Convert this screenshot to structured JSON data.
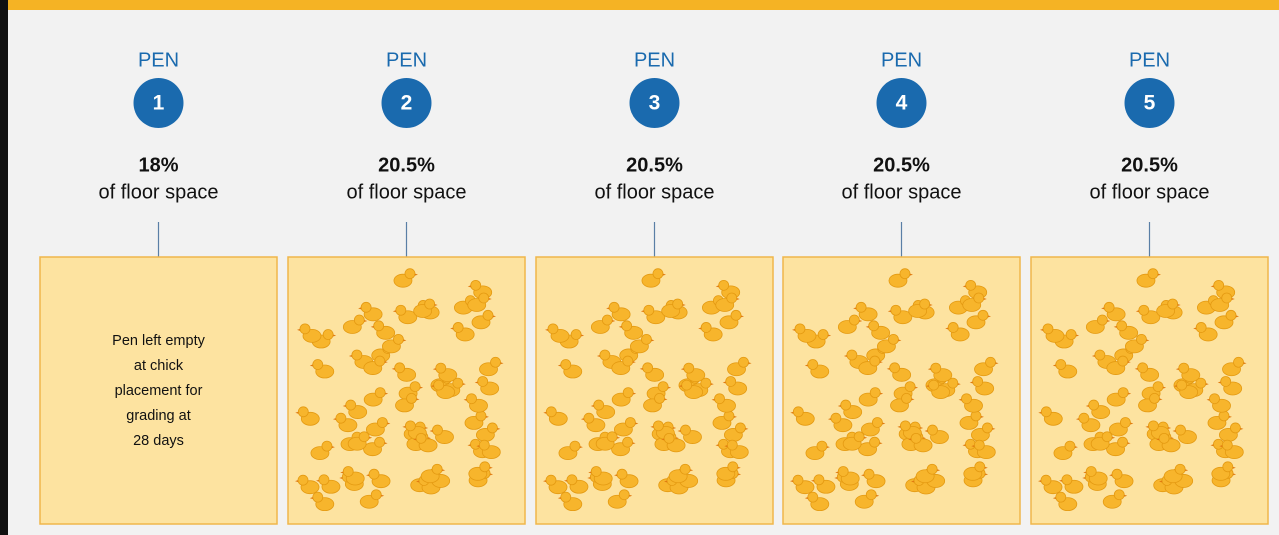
{
  "pens": [
    {
      "label": "PEN",
      "number": "1",
      "share": "18%",
      "caption": "of floor space",
      "note": [
        "Pen left empty",
        "at chick",
        "placement for",
        "grading at",
        "28 days"
      ]
    },
    {
      "label": "PEN",
      "number": "2",
      "share": "20.5%",
      "caption": "of floor space"
    },
    {
      "label": "PEN",
      "number": "3",
      "share": "20.5%",
      "caption": "of floor space"
    },
    {
      "label": "PEN",
      "number": "4",
      "share": "20.5%",
      "caption": "of floor space"
    },
    {
      "label": "PEN",
      "number": "5",
      "share": "20.5%",
      "caption": "of floor space"
    }
  ]
}
